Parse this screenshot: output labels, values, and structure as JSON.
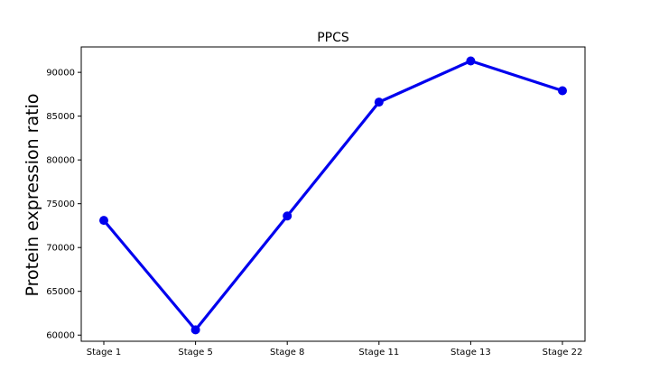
{
  "chart_data": {
    "type": "line",
    "title": "PPCS",
    "xlabel": "",
    "ylabel": "Protein expression ratio",
    "categories": [
      "Stage 1",
      "Stage 5",
      "Stage 8",
      "Stage 11",
      "Stage 13",
      "Stage 22"
    ],
    "series": [
      {
        "color": "#0000ee",
        "values": [
          73100,
          60600,
          73600,
          86600,
          91300,
          87900
        ]
      }
    ],
    "yticks": [
      60000,
      65000,
      70000,
      75000,
      80000,
      85000,
      90000
    ],
    "ytick_labels": [
      "60000",
      "65000",
      "70000",
      "75000",
      "80000",
      "85000",
      "90000"
    ],
    "ylim": [
      59300,
      92900
    ],
    "grid": false,
    "legend": "none"
  }
}
